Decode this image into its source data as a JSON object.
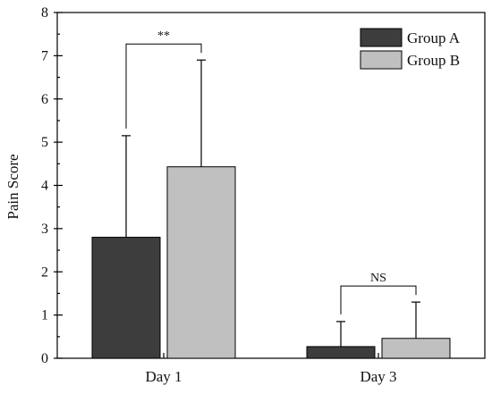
{
  "chart_data": {
    "type": "bar",
    "title": "",
    "xlabel": "",
    "ylabel": "Pain Score",
    "categories": [
      "Day 1",
      "Day 3"
    ],
    "ylim": [
      0,
      8
    ],
    "yticks": [
      0,
      1,
      2,
      3,
      4,
      5,
      6,
      7,
      8
    ],
    "series": [
      {
        "name": "Group A",
        "color": "#3d3d3d",
        "values": [
          2.8,
          0.27
        ],
        "error": [
          2.35,
          0.58
        ]
      },
      {
        "name": "Group B",
        "color": "#c0c0c0",
        "values": [
          4.43,
          0.46
        ],
        "error": [
          2.47,
          0.84
        ]
      }
    ],
    "significance": [
      {
        "category": "Day 1",
        "label": "**"
      },
      {
        "category": "Day 3",
        "label": "NS"
      }
    ],
    "legend_position": "top-right",
    "grid": false
  }
}
